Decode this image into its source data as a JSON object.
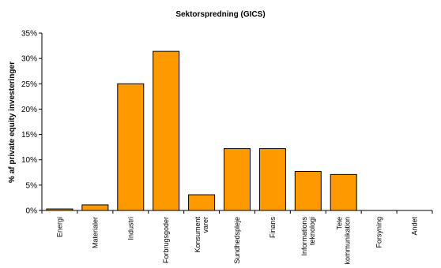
{
  "chart_data": {
    "type": "bar",
    "title": "Sektorspredning (GICS)",
    "ylabel": "% af private equity investeringer",
    "xlabel": "",
    "ylim": [
      0,
      35
    ],
    "yticks": [
      0,
      5,
      10,
      15,
      20,
      25,
      30,
      35
    ],
    "ytick_suffix": "%",
    "grid": false,
    "legend": "none",
    "bar_color": "#FF9900",
    "categories": [
      [
        "Energi"
      ],
      [
        "Materialer"
      ],
      [
        "Industri"
      ],
      [
        "Forbrugsgoder"
      ],
      [
        "Konsument",
        "varer"
      ],
      [
        "Sundhedspleje"
      ],
      [
        "Finans"
      ],
      [
        "Informations",
        "teknologi"
      ],
      [
        "Tele",
        "kommunikation"
      ],
      [
        "Forsyning"
      ],
      [
        "Andet"
      ]
    ],
    "values": [
      0.3,
      1.1,
      25.0,
      31.4,
      3.1,
      12.2,
      12.2,
      7.7,
      7.1,
      0,
      0
    ]
  }
}
